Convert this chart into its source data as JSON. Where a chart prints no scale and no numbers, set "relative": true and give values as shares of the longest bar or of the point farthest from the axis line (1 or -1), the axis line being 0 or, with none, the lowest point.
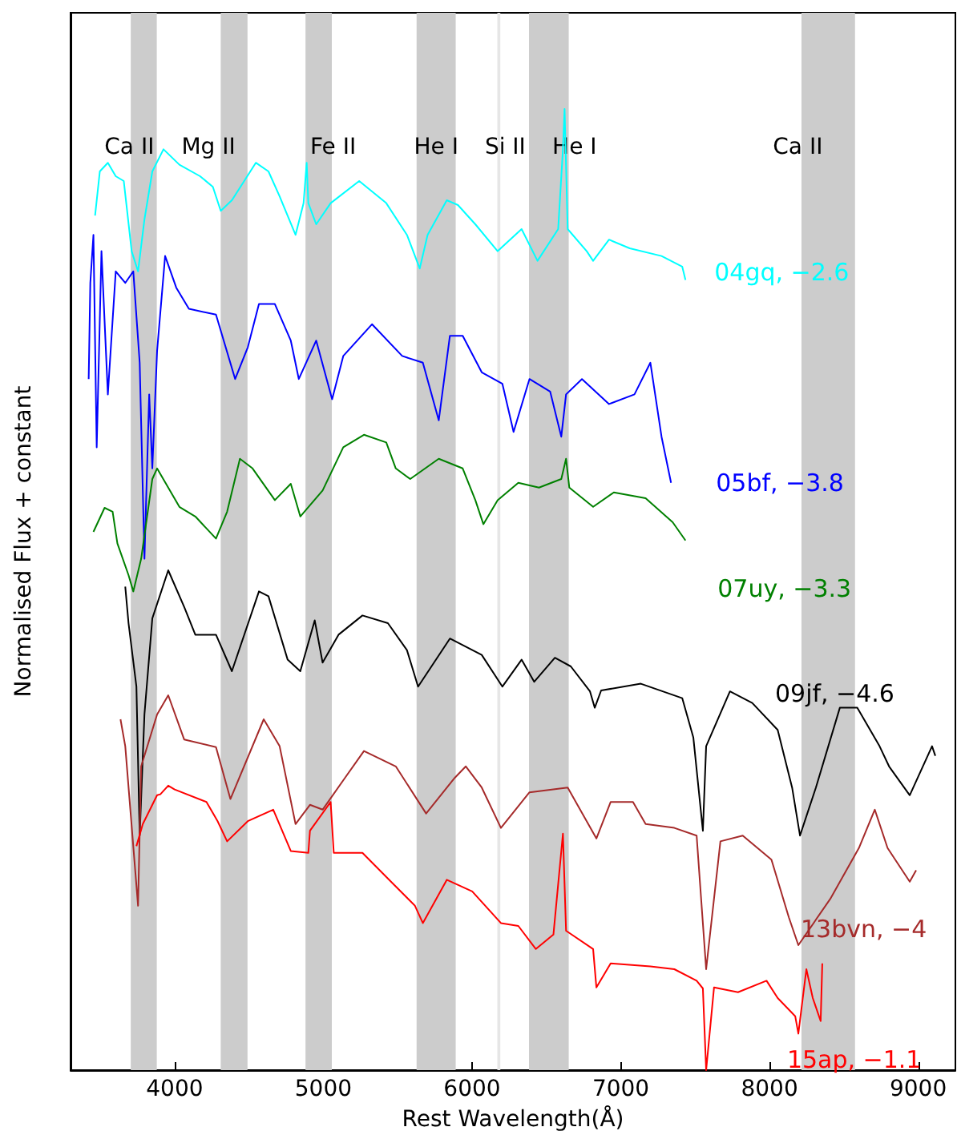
{
  "chart_data": {
    "type": "line",
    "relative": true,
    "xlabel": "Rest Wavelength(Å)",
    "ylabel": "Normalised Flux + constant",
    "xlim": [
      3300,
      9250
    ],
    "xticks": [
      4000,
      5000,
      6000,
      7000,
      8000,
      9000
    ],
    "tick_labels": "x",
    "legend": false,
    "bands": [
      {
        "axis": "x",
        "from": 3705,
        "to": 3880,
        "label": "Ca II",
        "color": "#cccccc"
      },
      {
        "axis": "x",
        "from": 4310,
        "to": 4490,
        "label": "Mg II",
        "color": "#cccccc"
      },
      {
        "axis": "x",
        "from": 4880,
        "to": 5057,
        "label": "Fe II",
        "color": "#cccccc"
      },
      {
        "axis": "x",
        "from": 5627,
        "to": 5890,
        "label": "He I",
        "color": "#cccccc"
      },
      {
        "axis": "x",
        "from": 6170,
        "to": 6190,
        "label": "Si II",
        "color": "#e6e6e6"
      },
      {
        "axis": "x",
        "from": 6383,
        "to": 6650,
        "label": "He I",
        "color": "#cccccc"
      },
      {
        "axis": "x",
        "from": 8215,
        "to": 8575,
        "label": "Ca II",
        "color": "#cccccc"
      }
    ],
    "series": [
      {
        "name": "04gq, −2.6",
        "color": "#00ffff",
        "x": [
          3465,
          3497,
          3551,
          3604,
          3658,
          3711,
          3754,
          3797,
          3850,
          3925,
          4032,
          4171,
          4257,
          4310,
          4385,
          4546,
          4631,
          4706,
          4813,
          4867,
          4888,
          4899,
          4952,
          5049,
          5241,
          5423,
          5562,
          5648,
          5701,
          5830,
          5905,
          6022,
          6172,
          6333,
          6440,
          6579,
          6611,
          6622,
          6643,
          6771,
          6814,
          6921,
          7060,
          7274,
          7413,
          7435
        ],
        "values": [
          0.889,
          0.935,
          0.944,
          0.93,
          0.925,
          0.852,
          0.831,
          0.885,
          0.935,
          0.958,
          0.942,
          0.93,
          0.919,
          0.894,
          0.905,
          0.944,
          0.935,
          0.909,
          0.869,
          0.902,
          0.944,
          0.902,
          0.88,
          0.902,
          0.925,
          0.902,
          0.869,
          0.834,
          0.869,
          0.905,
          0.9,
          0.88,
          0.852,
          0.875,
          0.842,
          0.875,
          0.958,
          1.0,
          0.875,
          0.852,
          0.842,
          0.864,
          0.855,
          0.847,
          0.836,
          0.822
        ]
      },
      {
        "name": "05bf, −3.8",
        "color": "#0000ff",
        "x": [
          3422,
          3433,
          3454,
          3476,
          3508,
          3551,
          3604,
          3668,
          3722,
          3765,
          3797,
          3829,
          3850,
          3882,
          3936,
          4011,
          4096,
          4278,
          4407,
          4492,
          4567,
          4674,
          4781,
          4835,
          4952,
          5059,
          5134,
          5327,
          5530,
          5669,
          5776,
          5851,
          5937,
          6065,
          6204,
          6279,
          6386,
          6525,
          6600,
          6632,
          6739,
          6921,
          7092,
          7199,
          7274,
          7338
        ],
        "values": [
          0.719,
          0.819,
          0.869,
          0.648,
          0.852,
          0.703,
          0.831,
          0.819,
          0.831,
          0.736,
          0.532,
          0.703,
          0.626,
          0.748,
          0.847,
          0.814,
          0.792,
          0.786,
          0.719,
          0.752,
          0.797,
          0.797,
          0.759,
          0.719,
          0.759,
          0.698,
          0.743,
          0.776,
          0.743,
          0.736,
          0.676,
          0.764,
          0.764,
          0.726,
          0.714,
          0.664,
          0.719,
          0.706,
          0.659,
          0.703,
          0.719,
          0.693,
          0.703,
          0.736,
          0.659,
          0.611
        ]
      },
      {
        "name": "07uy, −3.3",
        "color": "#008000",
        "x": [
          3454,
          3529,
          3583,
          3615,
          3690,
          3722,
          3775,
          3850,
          3882,
          4032,
          4139,
          4278,
          4353,
          4439,
          4524,
          4674,
          4781,
          4845,
          4995,
          5134,
          5273,
          5423,
          5487,
          5584,
          5776,
          5937,
          6022,
          6076,
          6172,
          6311,
          6450,
          6600,
          6632,
          6654,
          6814,
          6953,
          7167,
          7349,
          7435
        ],
        "values": [
          0.56,
          0.585,
          0.581,
          0.548,
          0.515,
          0.498,
          0.532,
          0.615,
          0.626,
          0.586,
          0.576,
          0.553,
          0.581,
          0.636,
          0.626,
          0.593,
          0.61,
          0.576,
          0.603,
          0.648,
          0.661,
          0.653,
          0.626,
          0.615,
          0.636,
          0.626,
          0.593,
          0.568,
          0.593,
          0.611,
          0.606,
          0.615,
          0.636,
          0.606,
          0.586,
          0.601,
          0.595,
          0.57,
          0.551
        ]
      },
      {
        "name": "09jf, −4.6",
        "color": "#000000",
        "x": [
          3668,
          3690,
          3743,
          3765,
          3797,
          3850,
          3957,
          4064,
          4139,
          4278,
          4385,
          4567,
          4631,
          4760,
          4845,
          4942,
          4995,
          5102,
          5263,
          5434,
          5562,
          5637,
          5851,
          6065,
          6204,
          6333,
          6418,
          6557,
          6664,
          6793,
          6825,
          6868,
          7135,
          7413,
          7488,
          7552,
          7574,
          7734,
          7884,
          8055,
          8152,
          8205,
          8312,
          8473,
          8590,
          8740,
          8804,
          8943,
          9093,
          9115
        ],
        "values": [
          0.503,
          0.465,
          0.399,
          0.244,
          0.37,
          0.47,
          0.52,
          0.482,
          0.453,
          0.453,
          0.415,
          0.498,
          0.493,
          0.427,
          0.415,
          0.468,
          0.424,
          0.453,
          0.473,
          0.465,
          0.437,
          0.399,
          0.449,
          0.432,
          0.399,
          0.427,
          0.404,
          0.429,
          0.42,
          0.394,
          0.377,
          0.395,
          0.402,
          0.387,
          0.346,
          0.249,
          0.337,
          0.394,
          0.382,
          0.354,
          0.294,
          0.244,
          0.294,
          0.377,
          0.377,
          0.337,
          0.316,
          0.286,
          0.337,
          0.327
        ]
      },
      {
        "name": "13bvn, −4",
        "color": "#a52a2a",
        "x": [
          3636,
          3668,
          3754,
          3775,
          3882,
          3957,
          4064,
          4278,
          4375,
          4599,
          4706,
          4813,
          4910,
          4995,
          5145,
          5273,
          5487,
          5691,
          5883,
          5958,
          6065,
          6194,
          6386,
          6643,
          6836,
          6932,
          7082,
          7167,
          7360,
          7510,
          7574,
          7670,
          7820,
          8013,
          8130,
          8194,
          8408,
          8601,
          8708,
          8794,
          8943,
          8986
        ],
        "values": [
          0.365,
          0.337,
          0.171,
          0.316,
          0.37,
          0.39,
          0.344,
          0.336,
          0.282,
          0.365,
          0.337,
          0.256,
          0.276,
          0.271,
          0.304,
          0.332,
          0.316,
          0.267,
          0.304,
          0.316,
          0.294,
          0.252,
          0.289,
          0.294,
          0.241,
          0.279,
          0.279,
          0.256,
          0.252,
          0.244,
          0.105,
          0.238,
          0.244,
          0.219,
          0.159,
          0.13,
          0.178,
          0.231,
          0.271,
          0.231,
          0.196,
          0.208
        ]
      },
      {
        "name": "15ap, −1.1",
        "color": "#ff0000",
        "x": [
          3743,
          3786,
          3882,
          3904,
          3957,
          4000,
          4214,
          4289,
          4353,
          4492,
          4663,
          4781,
          4899,
          4910,
          5049,
          5070,
          5263,
          5455,
          5616,
          5669,
          5830,
          6001,
          6194,
          6311,
          6429,
          6547,
          6611,
          6632,
          6814,
          6836,
          6932,
          7199,
          7360,
          7510,
          7552,
          7574,
          7627,
          7788,
          7980,
          8055,
          8173,
          8194,
          8248,
          8291,
          8344,
          8355
        ],
        "values": [
          0.233,
          0.256,
          0.286,
          0.287,
          0.296,
          0.292,
          0.279,
          0.259,
          0.238,
          0.259,
          0.271,
          0.228,
          0.226,
          0.249,
          0.279,
          0.226,
          0.226,
          0.196,
          0.171,
          0.153,
          0.198,
          0.186,
          0.153,
          0.15,
          0.126,
          0.141,
          0.246,
          0.145,
          0.126,
          0.086,
          0.111,
          0.108,
          0.105,
          0.093,
          0.085,
          0,
          0.086,
          0.081,
          0.093,
          0.075,
          0.056,
          0.038,
          0.105,
          0.075,
          0.051,
          0.111
        ]
      }
    ]
  }
}
